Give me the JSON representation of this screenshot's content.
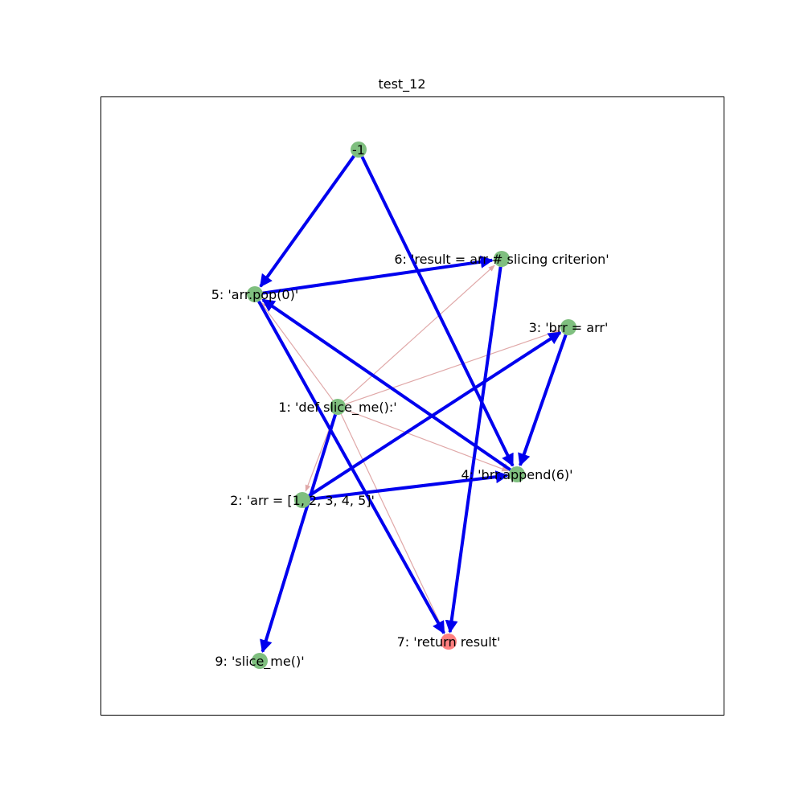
{
  "title": "test_12",
  "colors": {
    "node_default": "#7fbf7f",
    "node_highlight": "#ff7f7f",
    "edge_control": "#0000ee",
    "edge_data": "#e0a8a8",
    "frame": "#000000"
  },
  "nodes": [
    {
      "id": "n-1",
      "label": "-1",
      "color": "default"
    },
    {
      "id": "n1",
      "label": "1: 'def slice_me():'",
      "color": "default"
    },
    {
      "id": "n2",
      "label": "2: 'arr = [1, 2, 3, 4, 5]'",
      "color": "default"
    },
    {
      "id": "n3",
      "label": "3: 'brr = arr'",
      "color": "default"
    },
    {
      "id": "n4",
      "label": "4: 'brr.append(6)'",
      "color": "default"
    },
    {
      "id": "n5",
      "label": "5: 'arr.pop(0)'",
      "color": "default"
    },
    {
      "id": "n6",
      "label": "6: 'result = arr # slicing criterion'",
      "color": "default"
    },
    {
      "id": "n7",
      "label": "7: 'return result'",
      "color": "highlight"
    },
    {
      "id": "n9",
      "label": "9: 'slice_me()'",
      "color": "default"
    }
  ],
  "edges_control": [
    {
      "from": "n-1",
      "to": "n5"
    },
    {
      "from": "n-1",
      "to": "n4"
    },
    {
      "from": "n5",
      "to": "n6"
    },
    {
      "from": "n5",
      "to": "n7"
    },
    {
      "from": "n6",
      "to": "n7"
    },
    {
      "from": "n4",
      "to": "n5"
    },
    {
      "from": "n3",
      "to": "n4"
    },
    {
      "from": "n2",
      "to": "n3"
    },
    {
      "from": "n2",
      "to": "n4"
    },
    {
      "from": "n1",
      "to": "n9"
    }
  ],
  "edges_data": [
    {
      "from": "n1",
      "to": "n2"
    },
    {
      "from": "n1",
      "to": "n3"
    },
    {
      "from": "n1",
      "to": "n4"
    },
    {
      "from": "n1",
      "to": "n5"
    },
    {
      "from": "n1",
      "to": "n6"
    },
    {
      "from": "n1",
      "to": "n7"
    },
    {
      "from": "n5",
      "to": "n4"
    }
  ]
}
